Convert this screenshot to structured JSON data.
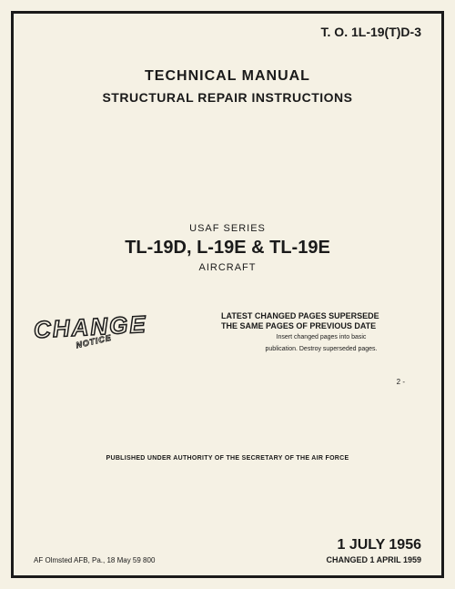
{
  "to_number": "T. O. 1L-19(T)D-3",
  "header": {
    "title": "TECHNICAL MANUAL",
    "subtitle": "STRUCTURAL REPAIR INSTRUCTIONS"
  },
  "series": {
    "label": "USAF SERIES",
    "models": "TL-19D, L-19E & TL-19E",
    "type": "AIRCRAFT"
  },
  "change_stamp": {
    "main": "CHANGE",
    "sub": "NOTICE"
  },
  "supersede": {
    "line1": "LATEST CHANGED PAGES SUPERSEDE",
    "line2": "THE SAME PAGES OF PREVIOUS DATE",
    "insert": "Insert changed pages into basic",
    "destroy": "publication. Destroy superseded pages."
  },
  "authority": "PUBLISHED UNDER AUTHORITY OF THE SECRETARY OF THE AIR FORCE",
  "footer": {
    "left": "AF Olmsted AFB, Pa., 18 May 59  800",
    "date": "1 JULY 1956",
    "changed": "CHANGED 1  APRIL 1959"
  },
  "page_tick": "2  -",
  "colors": {
    "paper": "#f5f1e4",
    "ink": "#1a1a1a"
  }
}
